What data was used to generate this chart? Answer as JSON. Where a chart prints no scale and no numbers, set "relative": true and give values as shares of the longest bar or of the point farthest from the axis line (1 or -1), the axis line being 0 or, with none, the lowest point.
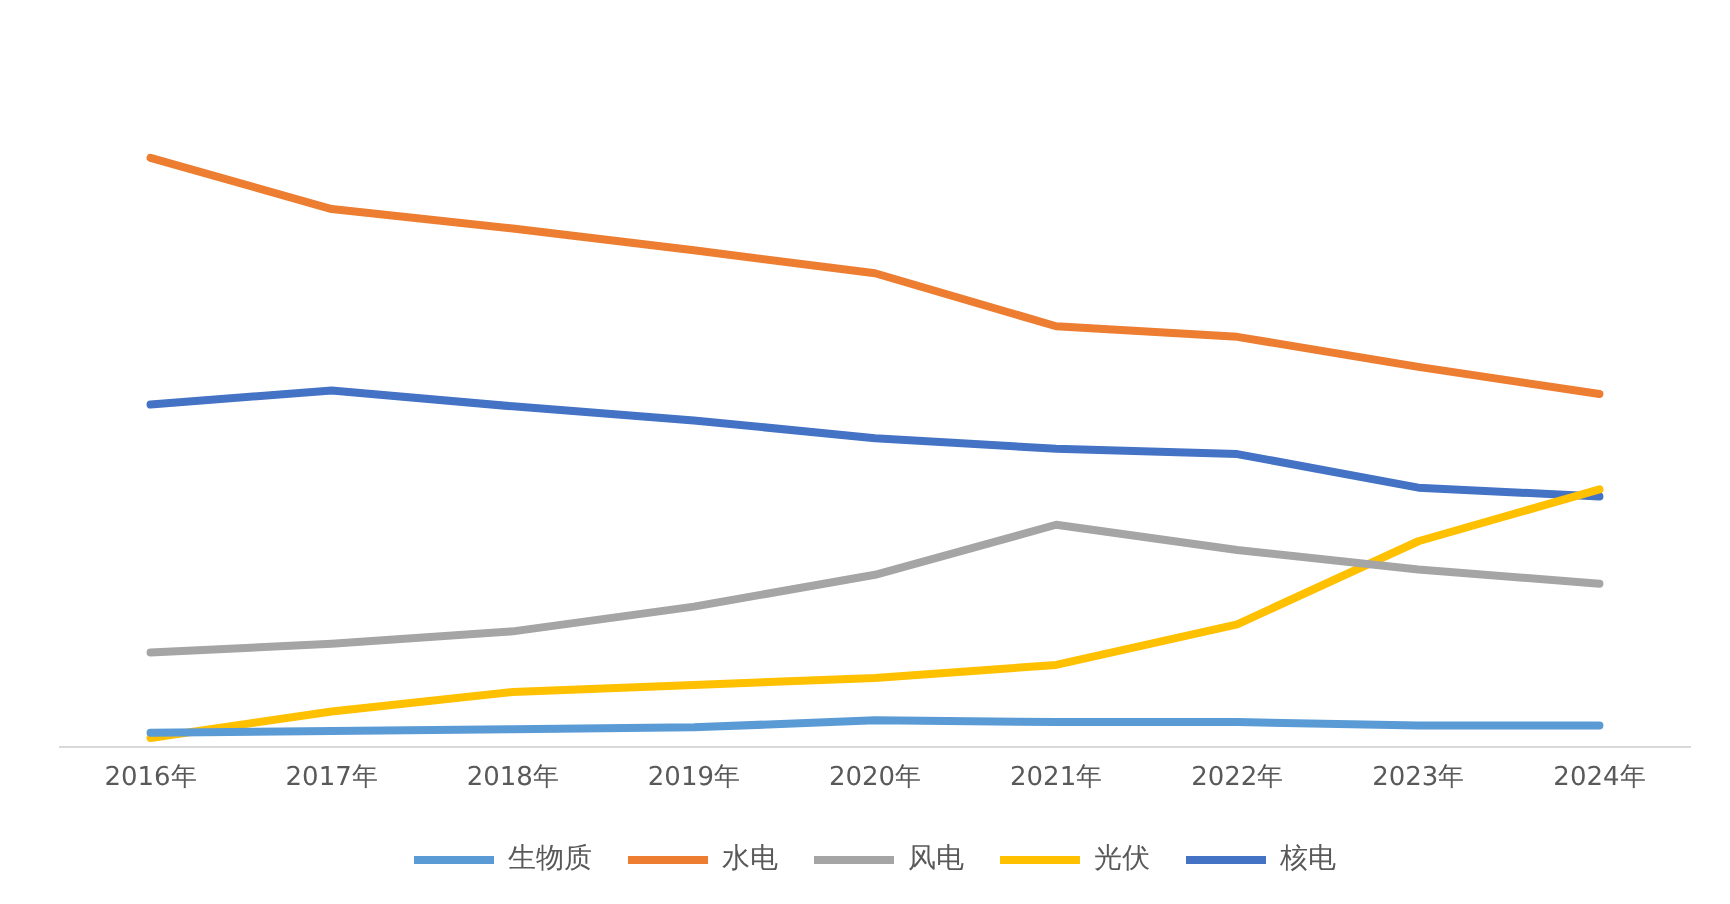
{
  "chart_data": {
    "type": "line",
    "relative": true,
    "categories": [
      "2016年",
      "2017年",
      "2018年",
      "2019年",
      "2020年",
      "2021年",
      "2022年",
      "2023年",
      "2024年"
    ],
    "series": [
      {
        "name": "生物质",
        "color": "#5b9bd5",
        "values": [
          0.024,
          0.027,
          0.03,
          0.033,
          0.045,
          0.042,
          0.042,
          0.036,
          0.036
        ]
      },
      {
        "name": "水电",
        "color": "#ed7d31",
        "values": [
          1,
          0.913,
          0.88,
          0.843,
          0.804,
          0.714,
          0.696,
          0.645,
          0.599
        ]
      },
      {
        "name": "风电",
        "color": "#a5a5a5",
        "values": [
          0.16,
          0.175,
          0.196,
          0.238,
          0.292,
          0.377,
          0.334,
          0.301,
          0.277
        ]
      },
      {
        "name": "光伏",
        "color": "#ffc000",
        "values": [
          0.015,
          0.06,
          0.093,
          0.105,
          0.117,
          0.139,
          0.208,
          0.349,
          0.437
        ]
      },
      {
        "name": "核电",
        "color": "#4472c4",
        "values": [
          0.581,
          0.605,
          0.578,
          0.554,
          0.524,
          0.506,
          0.497,
          0.44,
          0.425
        ]
      }
    ],
    "grid": false,
    "legend": "bottom",
    "marker": "none",
    "line_style": "solid"
  }
}
